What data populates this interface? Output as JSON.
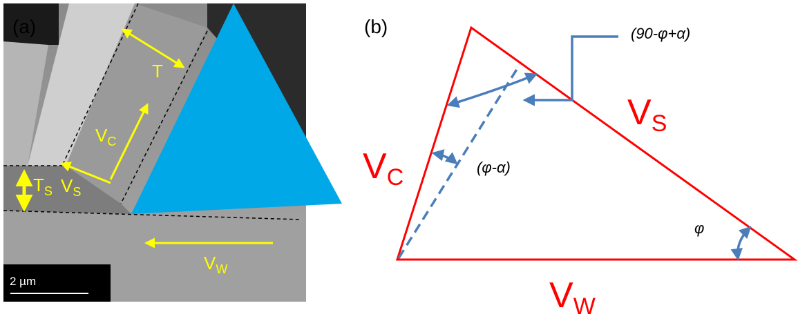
{
  "panel_a": {
    "label": "(a)",
    "thickness": "T",
    "chip_velocity": {
      "main": "V",
      "sub": "C"
    },
    "shear_velocity": {
      "main": "V",
      "sub": "S"
    },
    "depth": {
      "main": "T",
      "sub": "S"
    },
    "work_velocity": {
      "main": "V",
      "sub": "W"
    },
    "scale_bar": "2 µm"
  },
  "panel_b": {
    "label": "(b)",
    "angle_top": "(90-φ+α)",
    "angle_mid": "(φ-α)",
    "angle_phi": "φ",
    "side_s": {
      "main": "V",
      "sub": "S"
    },
    "side_c": {
      "main": "V",
      "sub": "C"
    },
    "side_w": {
      "main": "V",
      "sub": "W"
    }
  }
}
